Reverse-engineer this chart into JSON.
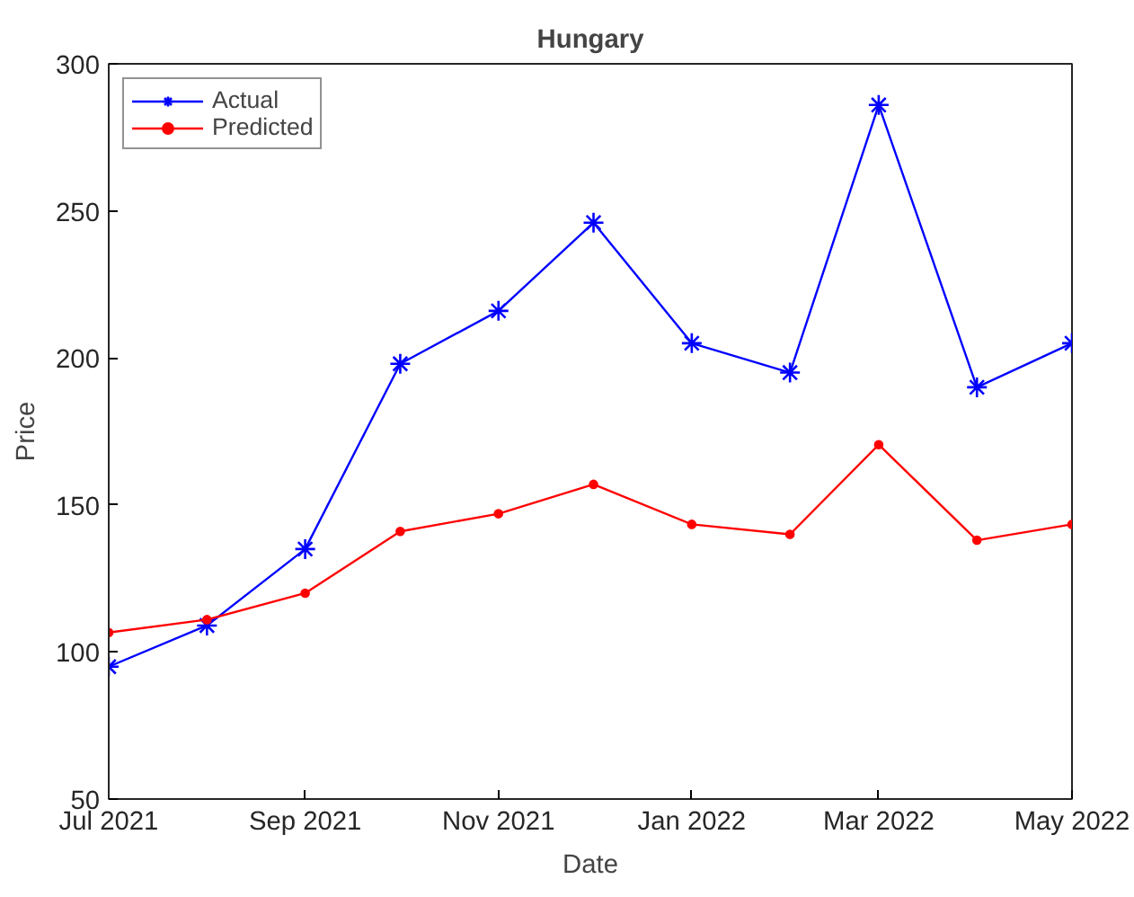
{
  "chart_data": {
    "type": "line",
    "title": "Hungary",
    "xlabel": "Date",
    "ylabel": "Price",
    "x": [
      "2021-07",
      "2021-08",
      "2021-09",
      "2021-10",
      "2021-11",
      "2021-12",
      "2022-01",
      "2022-02",
      "2022-03",
      "2022-04",
      "2022-05"
    ],
    "series": [
      {
        "name": "Actual",
        "color": "#0000ff",
        "marker": "cross",
        "values": [
          95,
          109,
          135,
          198,
          216,
          246,
          205,
          195,
          286,
          190,
          205
        ]
      },
      {
        "name": "Predicted",
        "color": "#ff0000",
        "marker": "circle",
        "values": [
          106.6,
          111,
          120,
          141,
          147,
          157,
          143.4,
          140,
          170.5,
          138,
          143.4
        ]
      }
    ],
    "xlim": [
      "2021-07",
      "2022-05"
    ],
    "xticks": [
      {
        "value": "2021-07",
        "label": "Jul 2021"
      },
      {
        "value": "2021-09",
        "label": "Sep 2021"
      },
      {
        "value": "2021-11",
        "label": "Nov 2021"
      },
      {
        "value": "2022-01",
        "label": "Jan 2022"
      },
      {
        "value": "2022-03",
        "label": "Mar 2022"
      },
      {
        "value": "2022-05",
        "label": "May 2022"
      }
    ],
    "ylim": [
      50,
      300
    ],
    "yticks": [
      50,
      100,
      150,
      200,
      250,
      300
    ],
    "grid": false,
    "legend": "top left",
    "line_style": "solid"
  }
}
